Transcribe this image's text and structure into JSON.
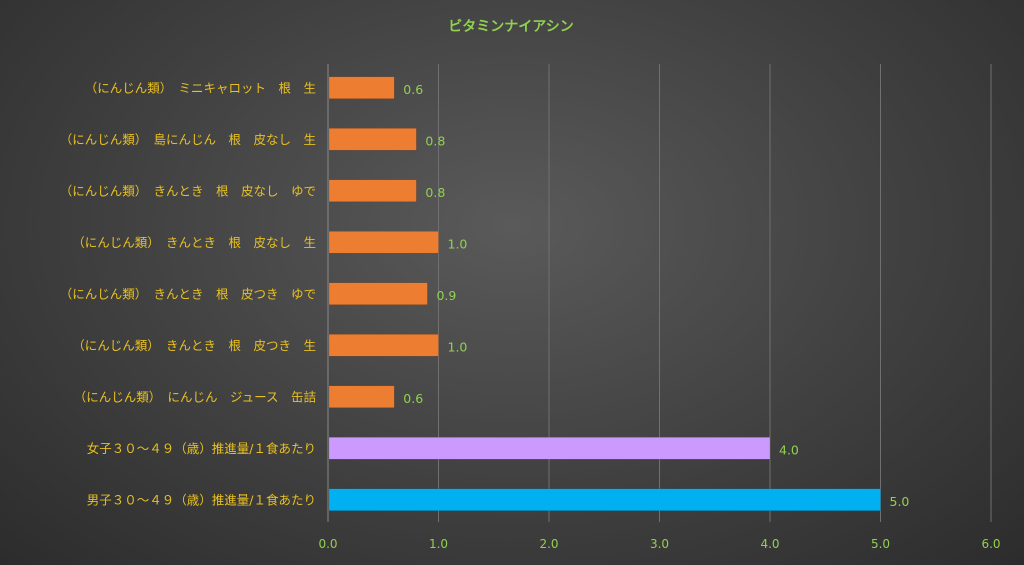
{
  "chart_data": {
    "type": "bar",
    "orientation": "horizontal",
    "title": "ビタミンナイアシン",
    "xlabel": "",
    "ylabel": "",
    "xlim": [
      0,
      6
    ],
    "x_ticks": [
      "0.0",
      "1.0",
      "2.0",
      "3.0",
      "4.0",
      "5.0",
      "6.0"
    ],
    "grid": true,
    "categories": [
      "（にんじん類）　ミニキャロット　根　生",
      "（にんじん類）　島にんじん　根　皮なし　生",
      "（にんじん類）　きんとき　根　皮なし　ゆで",
      "（にんじん類）　きんとき　根　皮なし　生",
      "（にんじん類）　きんとき　根　皮つき　ゆで",
      "（にんじん類）　きんとき　根　皮つき　生",
      "（にんじん類）　にんじん　ジュース　缶詰",
      "女子３０～４９（歳）推進量/１食あたり",
      "男子３０～４９（歳）推進量/１食あたり"
    ],
    "values": [
      0.6,
      0.8,
      0.8,
      1.0,
      0.9,
      1.0,
      0.6,
      4.0,
      5.0
    ],
    "value_labels": [
      "0.6",
      "0.8",
      "0.8",
      "1.0",
      "0.9",
      "1.0",
      "0.6",
      "4.0",
      "5.0"
    ],
    "bar_colors": [
      "#ed7d31",
      "#ed7d31",
      "#ed7d31",
      "#ed7d31",
      "#ed7d31",
      "#ed7d31",
      "#ed7d31",
      "#cc99ff",
      "#00b0f0"
    ]
  },
  "colors": {
    "title": "#92d050",
    "category_label": "#e8c020",
    "tick_label": "#92d050",
    "data_label": "#92d050",
    "gridline": "#707070"
  }
}
